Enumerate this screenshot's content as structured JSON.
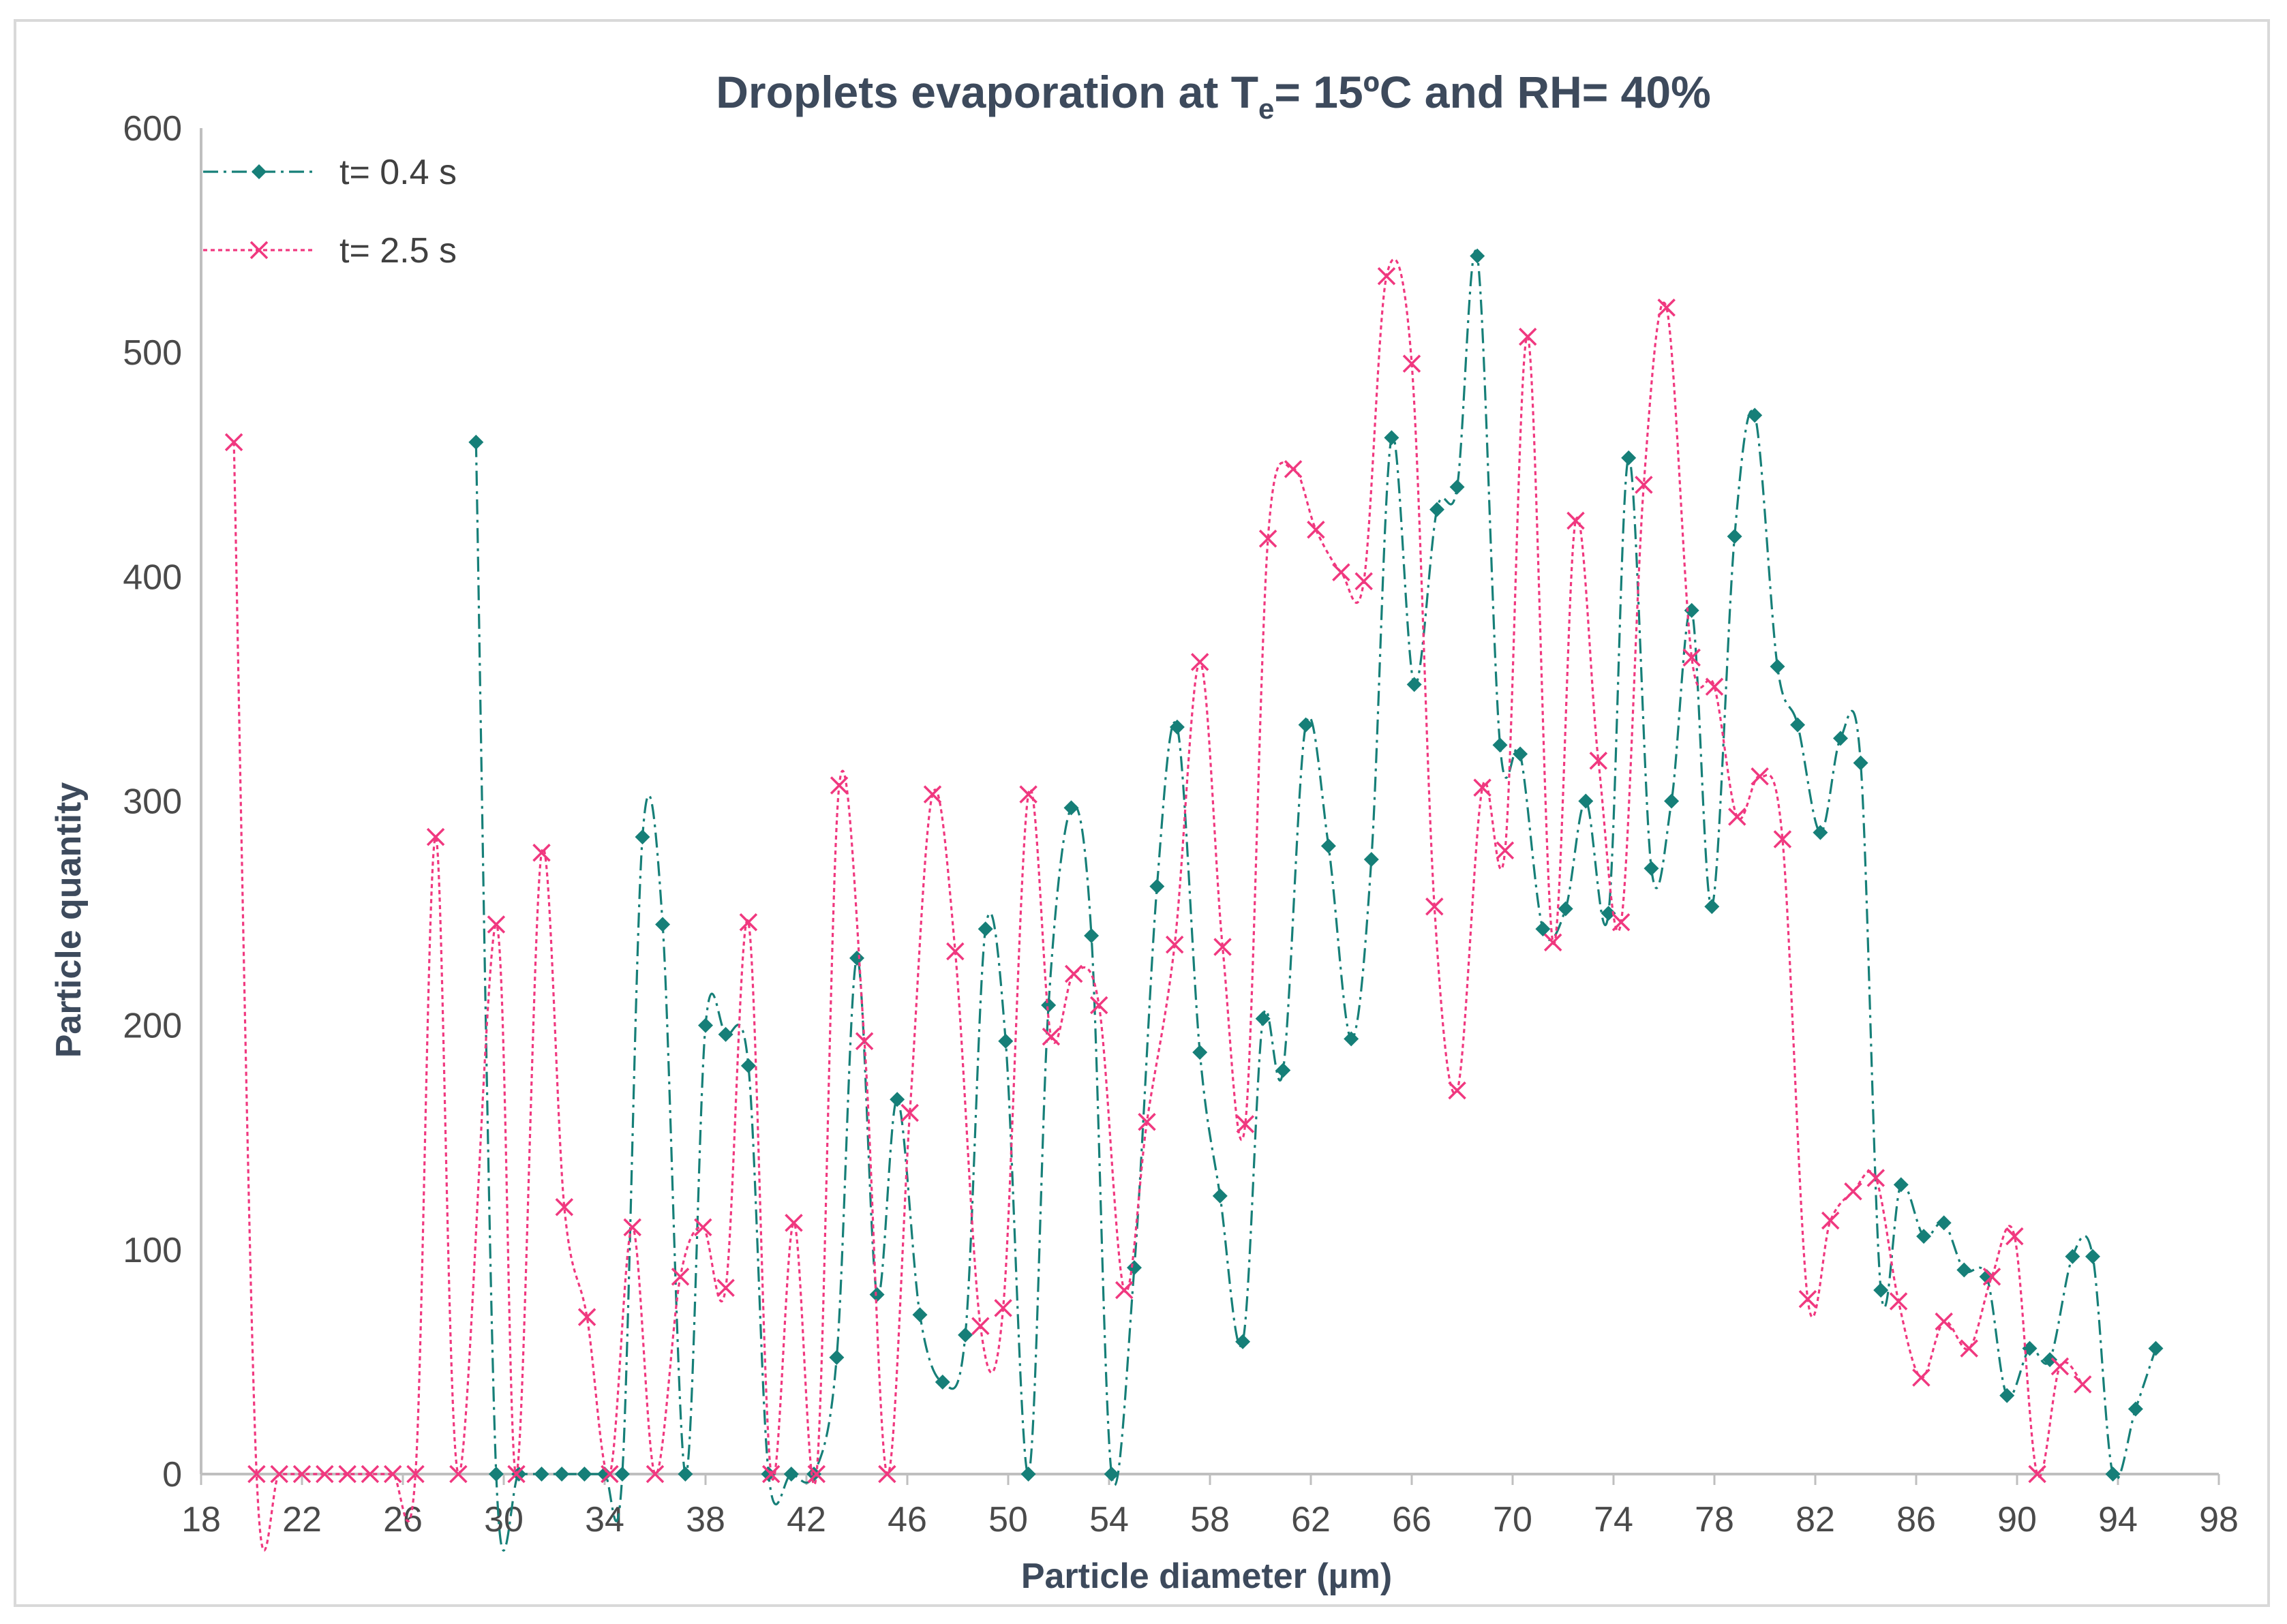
{
  "chart_data": {
    "type": "line",
    "title": "Droplets evaporation at Te= 15ºC and RH= 40%",
    "title_parts": {
      "main": "Droplets evaporation at T",
      "subscript": "e",
      "rest": "= 15ºC and RH= 40%"
    },
    "xlabel": "Particle diameter (µm)",
    "ylabel": "Particle quantity",
    "xlim": [
      18,
      98
    ],
    "ylim": [
      0,
      600
    ],
    "x_ticks": [
      "18",
      "22",
      "26",
      "30",
      "34",
      "38",
      "42",
      "46",
      "50",
      "54",
      "58",
      "62",
      "66",
      "70",
      "74",
      "78",
      "82",
      "86",
      "90",
      "94",
      "98"
    ],
    "y_ticks": [
      "0",
      "100",
      "200",
      "300",
      "400",
      "500",
      "600"
    ],
    "grid": false,
    "legend_position": "top-left",
    "series": [
      {
        "name": "t= 0.4 s",
        "color": "#167f78",
        "marker": "diamond",
        "line_style": "dash-dot",
        "points": [
          [
            28.9,
            460
          ],
          [
            29.7,
            0
          ],
          [
            30.6,
            0
          ],
          [
            31.5,
            0
          ],
          [
            32.3,
            0
          ],
          [
            33.2,
            0
          ],
          [
            34.0,
            0
          ],
          [
            34.7,
            0
          ],
          [
            35.5,
            284
          ],
          [
            36.3,
            245
          ],
          [
            37.2,
            0
          ],
          [
            38.0,
            200
          ],
          [
            38.8,
            196
          ],
          [
            39.7,
            182
          ],
          [
            40.5,
            0
          ],
          [
            41.4,
            0
          ],
          [
            42.3,
            0
          ],
          [
            43.2,
            52
          ],
          [
            44.0,
            230
          ],
          [
            44.8,
            80
          ],
          [
            45.6,
            167
          ],
          [
            46.5,
            71
          ],
          [
            47.4,
            41
          ],
          [
            48.3,
            62
          ],
          [
            49.1,
            243
          ],
          [
            49.9,
            193
          ],
          [
            50.8,
            0
          ],
          [
            51.6,
            209
          ],
          [
            52.5,
            297
          ],
          [
            53.3,
            240
          ],
          [
            54.1,
            0
          ],
          [
            55.0,
            92
          ],
          [
            55.9,
            262
          ],
          [
            56.7,
            333
          ],
          [
            57.6,
            188
          ],
          [
            58.4,
            124
          ],
          [
            59.3,
            59
          ],
          [
            60.1,
            203
          ],
          [
            60.9,
            180
          ],
          [
            61.8,
            334
          ],
          [
            62.7,
            280
          ],
          [
            63.6,
            194
          ],
          [
            64.4,
            274
          ],
          [
            65.2,
            462
          ],
          [
            66.1,
            352
          ],
          [
            67.0,
            430
          ],
          [
            67.8,
            440
          ],
          [
            68.6,
            543
          ],
          [
            69.5,
            325
          ],
          [
            70.3,
            321
          ],
          [
            71.2,
            243
          ],
          [
            72.1,
            252
          ],
          [
            72.9,
            300
          ],
          [
            73.8,
            250
          ],
          [
            74.6,
            453
          ],
          [
            75.5,
            270
          ],
          [
            76.3,
            300
          ],
          [
            77.1,
            385
          ],
          [
            77.9,
            253
          ],
          [
            78.8,
            418
          ],
          [
            79.6,
            472
          ],
          [
            80.5,
            360
          ],
          [
            81.3,
            334
          ],
          [
            82.2,
            286
          ],
          [
            83.0,
            328
          ],
          [
            83.8,
            317
          ],
          [
            84.6,
            82
          ],
          [
            85.4,
            129
          ],
          [
            86.3,
            106
          ],
          [
            87.1,
            112
          ],
          [
            87.9,
            91
          ],
          [
            88.8,
            88
          ],
          [
            89.6,
            35
          ],
          [
            90.5,
            56
          ],
          [
            91.3,
            51
          ],
          [
            92.2,
            97
          ],
          [
            93.0,
            97
          ],
          [
            93.8,
            0
          ],
          [
            94.7,
            29
          ],
          [
            95.5,
            56
          ]
        ]
      },
      {
        "name": "t= 2.5 s",
        "color": "#f0387f",
        "marker": "x",
        "line_style": "dotted",
        "points": [
          [
            19.3,
            460
          ],
          [
            20.2,
            0
          ],
          [
            21.1,
            0
          ],
          [
            22.0,
            0
          ],
          [
            22.9,
            0
          ],
          [
            23.8,
            0
          ],
          [
            24.7,
            0
          ],
          [
            25.6,
            0
          ],
          [
            26.5,
            0
          ],
          [
            27.3,
            284
          ],
          [
            28.2,
            0
          ],
          [
            29.7,
            245
          ],
          [
            30.5,
            0
          ],
          [
            31.5,
            277
          ],
          [
            32.4,
            119
          ],
          [
            33.3,
            70
          ],
          [
            34.2,
            0
          ],
          [
            35.1,
            110
          ],
          [
            36.0,
            0
          ],
          [
            37.0,
            88
          ],
          [
            37.9,
            110
          ],
          [
            38.8,
            83
          ],
          [
            39.7,
            246
          ],
          [
            40.6,
            0
          ],
          [
            41.5,
            112
          ],
          [
            42.4,
            0
          ],
          [
            43.3,
            307
          ],
          [
            44.3,
            193
          ],
          [
            45.2,
            0
          ],
          [
            46.1,
            161
          ],
          [
            47.0,
            303
          ],
          [
            47.9,
            233
          ],
          [
            48.9,
            66
          ],
          [
            49.8,
            74
          ],
          [
            50.8,
            303
          ],
          [
            51.7,
            195
          ],
          [
            52.6,
            223
          ],
          [
            53.6,
            209
          ],
          [
            54.6,
            82
          ],
          [
            55.5,
            157
          ],
          [
            56.6,
            236
          ],
          [
            57.6,
            362
          ],
          [
            58.5,
            235
          ],
          [
            59.4,
            156
          ],
          [
            60.3,
            417
          ],
          [
            61.3,
            448
          ],
          [
            62.2,
            421
          ],
          [
            63.2,
            402
          ],
          [
            64.1,
            398
          ],
          [
            65.0,
            534
          ],
          [
            66.0,
            495
          ],
          [
            66.9,
            253
          ],
          [
            67.8,
            171
          ],
          [
            68.8,
            306
          ],
          [
            69.7,
            278
          ],
          [
            70.6,
            507
          ],
          [
            71.6,
            237
          ],
          [
            72.5,
            425
          ],
          [
            73.4,
            318
          ],
          [
            74.3,
            246
          ],
          [
            75.2,
            441
          ],
          [
            76.1,
            520
          ],
          [
            77.1,
            364
          ],
          [
            78.0,
            351
          ],
          [
            78.9,
            293
          ],
          [
            79.8,
            311
          ],
          [
            80.7,
            283
          ],
          [
            81.7,
            78
          ],
          [
            82.6,
            113
          ],
          [
            83.5,
            126
          ],
          [
            84.4,
            132
          ],
          [
            85.3,
            77
          ],
          [
            86.2,
            43
          ],
          [
            87.1,
            68
          ],
          [
            88.1,
            56
          ],
          [
            89.0,
            88
          ],
          [
            89.9,
            106
          ],
          [
            90.8,
            0
          ],
          [
            91.7,
            48
          ],
          [
            92.6,
            40
          ]
        ]
      }
    ]
  }
}
